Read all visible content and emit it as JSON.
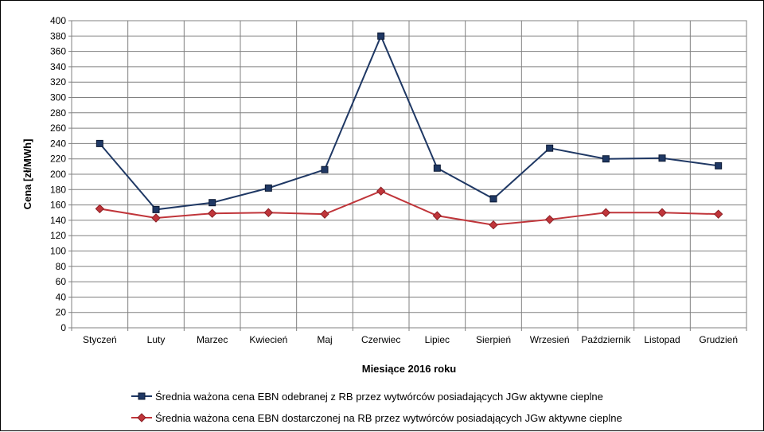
{
  "chart_data": {
    "type": "line",
    "xlabel": "Miesiące 2016  roku",
    "ylabel": "Cena [zł/MWh]",
    "ylim": [
      0,
      400
    ],
    "ytick_step": 20,
    "grid": true,
    "legend_position": "bottom",
    "categories": [
      "Styczeń",
      "Luty",
      "Marzec",
      "Kwiecień",
      "Maj",
      "Czerwiec",
      "Lipiec",
      "Sierpień",
      "Wrzesień",
      "Październik",
      "Listopad",
      "Grudzień"
    ],
    "series": [
      {
        "name": "Średnia ważona cena EBN odebranej z RB przez wytwórców posiadających JGw aktywne cieplne",
        "color": "#1f3864",
        "marker": "square",
        "values": [
          240,
          154,
          163,
          182,
          206,
          380,
          208,
          168,
          234,
          220,
          221,
          211
        ]
      },
      {
        "name": "Średnia ważona cena EBN dostarczonej na RB przez wytwórców posiadających JGw aktywne cieplne",
        "color": "#c0353a",
        "marker": "diamond",
        "values": [
          155,
          143,
          149,
          150,
          148,
          178,
          146,
          134,
          141,
          150,
          150,
          148
        ]
      }
    ]
  }
}
